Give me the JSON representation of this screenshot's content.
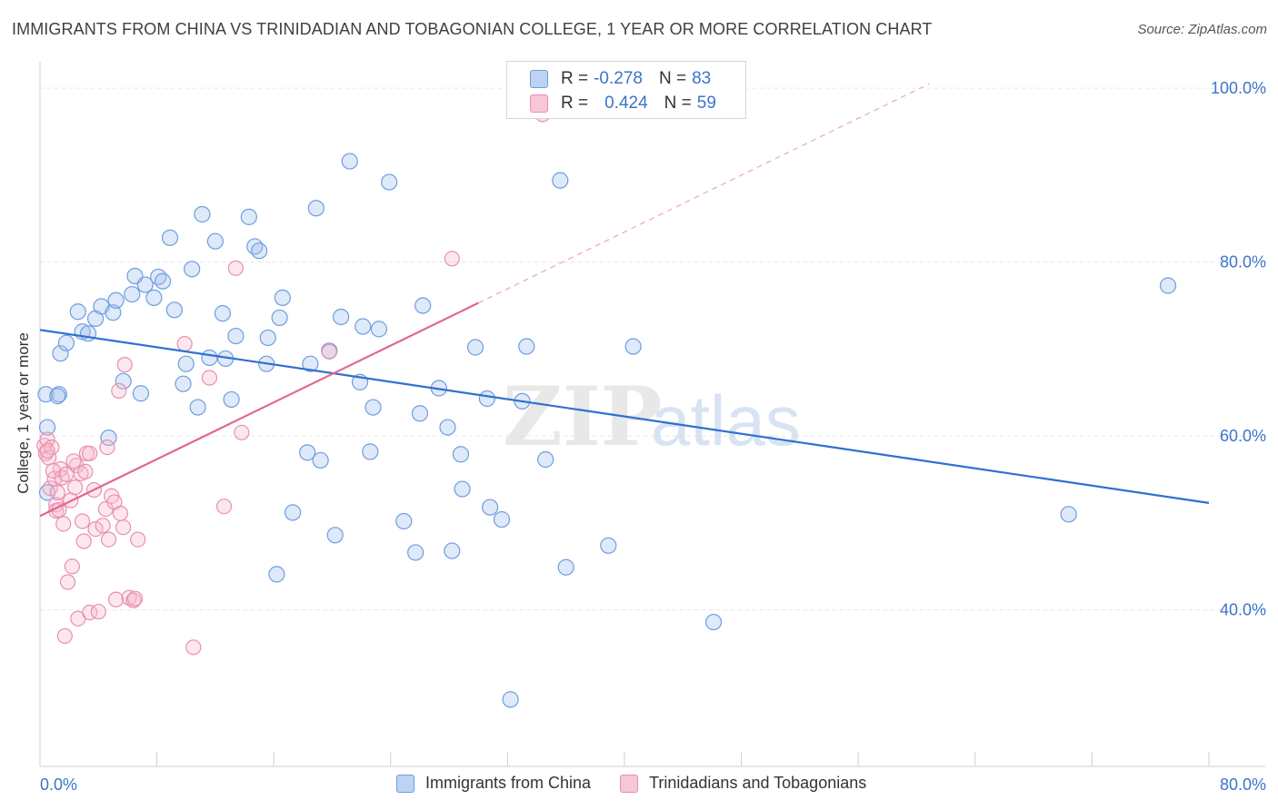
{
  "header": {
    "title": "IMMIGRANTS FROM CHINA VS TRINIDADIAN AND TOBAGONIAN COLLEGE, 1 YEAR OR MORE CORRELATION CHART",
    "source": "Source: ZipAtlas.com"
  },
  "legend": {
    "series1": {
      "r_label": "R =",
      "r_value": "-0.278",
      "n_label": "N =",
      "n_value": "83"
    },
    "series2": {
      "r_label": "R =",
      "r_value": "0.424",
      "n_label": "N =",
      "n_value": "59"
    }
  },
  "watermark": {
    "part1": "ZIP",
    "part2": "atlas"
  },
  "chart_data": {
    "type": "scatter",
    "title": "IMMIGRANTS FROM CHINA VS TRINIDADIAN AND TOBAGONIAN COLLEGE, 1 YEAR OR MORE CORRELATION CHART",
    "xlabel": "",
    "ylabel": "College, 1 year or more",
    "xlim": [
      0,
      80
    ],
    "ylim": [
      22,
      102
    ],
    "x_tick_labels": [
      "0.0%",
      "80.0%"
    ],
    "y_tick_labels": [
      "100.0%",
      "80.0%",
      "60.0%",
      "40.0%"
    ],
    "y_ticks": [
      100,
      80,
      60,
      40
    ],
    "grid": true,
    "legend_position": "top-center",
    "colors": {
      "china": "#4a86d8",
      "trinidad": "#e87aa0"
    },
    "series": [
      {
        "name": "Immigrants from China",
        "trend": {
          "x": [
            0,
            80
          ],
          "y": [
            72.2,
            52.3
          ]
        },
        "points": [
          [
            0.4,
            64.8
          ],
          [
            0.5,
            61.0
          ],
          [
            0.5,
            53.5
          ],
          [
            1.3,
            64.8
          ],
          [
            1.4,
            69.5
          ],
          [
            1.8,
            70.7
          ],
          [
            2.6,
            74.3
          ],
          [
            2.9,
            72.0
          ],
          [
            3.3,
            71.8
          ],
          [
            3.8,
            73.5
          ],
          [
            4.2,
            74.9
          ],
          [
            5.0,
            74.2
          ],
          [
            5.2,
            75.6
          ],
          [
            4.7,
            59.8
          ],
          [
            5.7,
            66.3
          ],
          [
            6.3,
            76.3
          ],
          [
            6.5,
            78.4
          ],
          [
            6.9,
            64.9
          ],
          [
            7.2,
            77.4
          ],
          [
            7.8,
            75.9
          ],
          [
            8.1,
            78.3
          ],
          [
            8.4,
            77.8
          ],
          [
            8.9,
            82.8
          ],
          [
            9.2,
            74.5
          ],
          [
            9.8,
            66.0
          ],
          [
            10.0,
            68.3
          ],
          [
            10.4,
            79.2
          ],
          [
            10.8,
            63.3
          ],
          [
            11.1,
            85.5
          ],
          [
            11.6,
            69.0
          ],
          [
            12.0,
            82.4
          ],
          [
            12.5,
            74.1
          ],
          [
            12.7,
            68.9
          ],
          [
            13.1,
            64.2
          ],
          [
            13.4,
            71.5
          ],
          [
            14.3,
            85.2
          ],
          [
            14.7,
            81.8
          ],
          [
            15.0,
            81.3
          ],
          [
            15.5,
            68.3
          ],
          [
            15.6,
            71.3
          ],
          [
            16.2,
            44.1
          ],
          [
            16.4,
            73.6
          ],
          [
            16.6,
            75.9
          ],
          [
            17.3,
            51.2
          ],
          [
            18.3,
            58.1
          ],
          [
            18.5,
            68.3
          ],
          [
            18.9,
            86.2
          ],
          [
            19.2,
            57.2
          ],
          [
            19.8,
            69.8
          ],
          [
            20.2,
            48.6
          ],
          [
            20.6,
            73.7
          ],
          [
            21.2,
            91.6
          ],
          [
            21.9,
            66.2
          ],
          [
            22.1,
            72.6
          ],
          [
            22.6,
            58.2
          ],
          [
            22.8,
            63.3
          ],
          [
            23.2,
            72.3
          ],
          [
            23.9,
            89.2
          ],
          [
            24.9,
            50.2
          ],
          [
            25.7,
            46.6
          ],
          [
            26.0,
            62.6
          ],
          [
            26.2,
            75.0
          ],
          [
            27.3,
            65.5
          ],
          [
            27.9,
            61.0
          ],
          [
            28.2,
            46.8
          ],
          [
            28.8,
            57.9
          ],
          [
            28.9,
            53.9
          ],
          [
            29.8,
            70.2
          ],
          [
            30.6,
            64.3
          ],
          [
            30.8,
            51.8
          ],
          [
            31.6,
            50.4
          ],
          [
            32.2,
            29.7
          ],
          [
            33.0,
            64.0
          ],
          [
            33.3,
            70.3
          ],
          [
            34.6,
            57.3
          ],
          [
            35.6,
            89.4
          ],
          [
            36.0,
            44.9
          ],
          [
            38.9,
            47.4
          ],
          [
            40.6,
            70.3
          ],
          [
            46.1,
            38.6
          ],
          [
            70.4,
            51.0
          ],
          [
            77.2,
            77.3
          ],
          [
            1.2,
            64.6
          ]
        ]
      },
      {
        "name": "Trinidadians and Tobagonians",
        "trend": {
          "x": [
            0,
            30
          ],
          "y": [
            50.8,
            75.3
          ]
        },
        "points": [
          [
            0.3,
            58.9
          ],
          [
            0.4,
            58.0
          ],
          [
            0.5,
            59.6
          ],
          [
            0.6,
            57.5
          ],
          [
            0.7,
            54.0
          ],
          [
            0.8,
            58.7
          ],
          [
            1.0,
            55.1
          ],
          [
            1.1,
            52.1
          ],
          [
            1.1,
            51.4
          ],
          [
            1.2,
            53.5
          ],
          [
            1.3,
            51.5
          ],
          [
            1.4,
            56.2
          ],
          [
            1.5,
            55.2
          ],
          [
            1.6,
            49.9
          ],
          [
            1.7,
            37.0
          ],
          [
            1.9,
            43.2
          ],
          [
            2.1,
            52.6
          ],
          [
            2.2,
            45.0
          ],
          [
            2.4,
            54.1
          ],
          [
            2.5,
            56.6
          ],
          [
            2.6,
            39.0
          ],
          [
            2.8,
            55.7
          ],
          [
            2.9,
            50.2
          ],
          [
            3.0,
            47.9
          ],
          [
            3.2,
            58.0
          ],
          [
            3.4,
            39.7
          ],
          [
            3.4,
            58.0
          ],
          [
            3.7,
            53.8
          ],
          [
            3.8,
            49.3
          ],
          [
            4.0,
            39.8
          ],
          [
            4.3,
            49.7
          ],
          [
            4.5,
            51.6
          ],
          [
            4.6,
            58.7
          ],
          [
            4.7,
            48.1
          ],
          [
            4.9,
            53.1
          ],
          [
            5.1,
            52.4
          ],
          [
            5.2,
            41.2
          ],
          [
            5.4,
            65.2
          ],
          [
            5.5,
            51.1
          ],
          [
            5.7,
            49.5
          ],
          [
            5.8,
            68.2
          ],
          [
            6.1,
            41.4
          ],
          [
            6.4,
            41.1
          ],
          [
            6.5,
            41.3
          ],
          [
            6.7,
            48.1
          ],
          [
            9.9,
            70.6
          ],
          [
            10.5,
            35.7
          ],
          [
            11.6,
            66.7
          ],
          [
            12.6,
            51.9
          ],
          [
            13.4,
            79.3
          ],
          [
            13.8,
            60.4
          ],
          [
            19.8,
            69.7
          ],
          [
            28.2,
            80.4
          ],
          [
            34.4,
            97.0
          ],
          [
            1.8,
            55.6
          ],
          [
            2.3,
            57.1
          ],
          [
            0.9,
            56.0
          ],
          [
            3.1,
            55.9
          ],
          [
            0.5,
            58.3
          ]
        ]
      }
    ]
  },
  "bottom_legend": {
    "item1": "Immigrants from China",
    "item2": "Trinidadians and Tobagonians"
  },
  "axes": {
    "x_min_label": "0.0%",
    "x_max_label": "80.0%"
  }
}
